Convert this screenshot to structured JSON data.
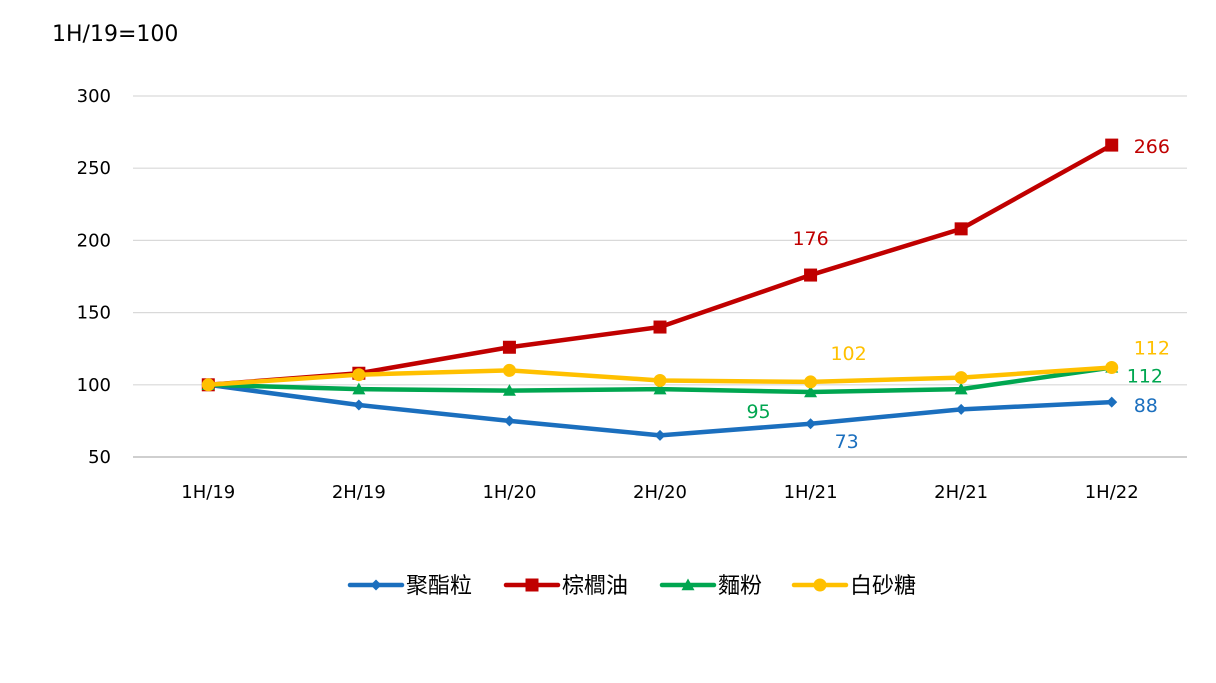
{
  "unit_note": "1H/19=100",
  "colors": {
    "grid": "#d9d9d9",
    "axis": "#bfbfbf",
    "text": "#000000"
  },
  "chart_data": {
    "type": "line",
    "title": "",
    "xlabel": "",
    "ylabel": "",
    "categories": [
      "1H/19",
      "2H/19",
      "1H/20",
      "2H/20",
      "1H/21",
      "2H/21",
      "1H/22"
    ],
    "ylim": [
      50,
      300
    ],
    "yticks": [
      50,
      100,
      150,
      200,
      250,
      300
    ],
    "grid": true,
    "legend_position": "bottom",
    "series": [
      {
        "name": "聚酯粒",
        "color": "#1b6fbe",
        "marker": "diamond",
        "values": [
          100,
          86,
          75,
          65,
          73,
          83,
          88
        ],
        "labels": [
          {
            "index": 4,
            "text": "73"
          },
          {
            "index": 6,
            "text": "88"
          }
        ]
      },
      {
        "name": "棕櫚油",
        "color": "#c00000",
        "marker": "square",
        "values": [
          100,
          108,
          126,
          140,
          176,
          208,
          266
        ],
        "labels": [
          {
            "index": 4,
            "text": "176"
          },
          {
            "index": 6,
            "text": "266"
          }
        ]
      },
      {
        "name": "麵粉",
        "color": "#00a650",
        "marker": "triangle",
        "values": [
          100,
          97,
          96,
          97,
          95,
          97,
          112
        ],
        "labels": [
          {
            "index": 4,
            "text": "95"
          },
          {
            "index": 6,
            "text": "112"
          }
        ]
      },
      {
        "name": "白砂糖",
        "color": "#ffc000",
        "marker": "circle",
        "values": [
          100,
          107,
          110,
          103,
          102,
          105,
          112
        ],
        "labels": [
          {
            "index": 4,
            "text": "102"
          },
          {
            "index": 6,
            "text": "112"
          }
        ]
      }
    ]
  }
}
